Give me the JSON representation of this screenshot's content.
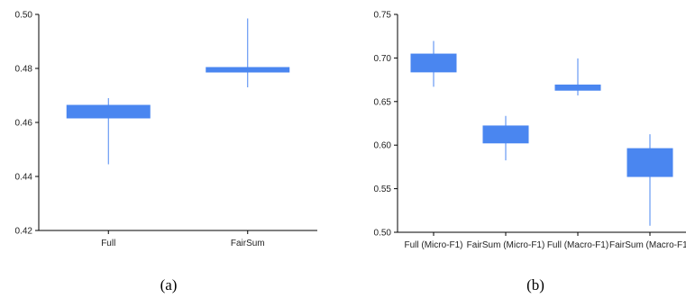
{
  "chart_data": [
    {
      "type": "box",
      "caption": "(a)",
      "categories": [
        "Full",
        "FairSum"
      ],
      "ylim": [
        0.42,
        0.5
      ],
      "yticks": [
        "0.50",
        "0.48",
        "0.46",
        "0.44",
        "0.42"
      ],
      "ytick_values": [
        0.5,
        0.48,
        0.46,
        0.44,
        0.42
      ],
      "boxes": [
        {
          "name": "Full",
          "min": 0.4445,
          "q1": 0.4615,
          "q3": 0.4665,
          "max": 0.469
        },
        {
          "name": "FairSum",
          "min": 0.473,
          "q1": 0.4785,
          "q3": 0.4805,
          "max": 0.4985
        }
      ],
      "color": "#4a86f0",
      "grid": false,
      "legend": "none"
    },
    {
      "type": "box",
      "caption": "(b)",
      "categories": [
        "Full (Micro-F1)",
        "FairSum (Micro-F1)",
        "Full (Macro-F1)",
        "FairSum (Macro-F1)"
      ],
      "ylim": [
        0.5,
        0.75
      ],
      "yticks": [
        "0.75",
        "0.70",
        "0.65",
        "0.60",
        "0.55",
        "0.50"
      ],
      "ytick_values": [
        0.75,
        0.7,
        0.65,
        0.6,
        0.55,
        0.5
      ],
      "boxes": [
        {
          "name": "Full (Micro-F1)",
          "min": 0.667,
          "q1": 0.6835,
          "q3": 0.705,
          "max": 0.7195
        },
        {
          "name": "FairSum (Micro-F1)",
          "min": 0.5825,
          "q1": 0.602,
          "q3": 0.6225,
          "max": 0.6335
        },
        {
          "name": "Full (Macro-F1)",
          "min": 0.657,
          "q1": 0.6625,
          "q3": 0.6695,
          "max": 0.6995
        },
        {
          "name": "FairSum (Macro-F1)",
          "min": 0.5075,
          "q1": 0.5635,
          "q3": 0.5965,
          "max": 0.6125
        }
      ],
      "color": "#4a86f0",
      "grid": false,
      "legend": "none"
    }
  ]
}
